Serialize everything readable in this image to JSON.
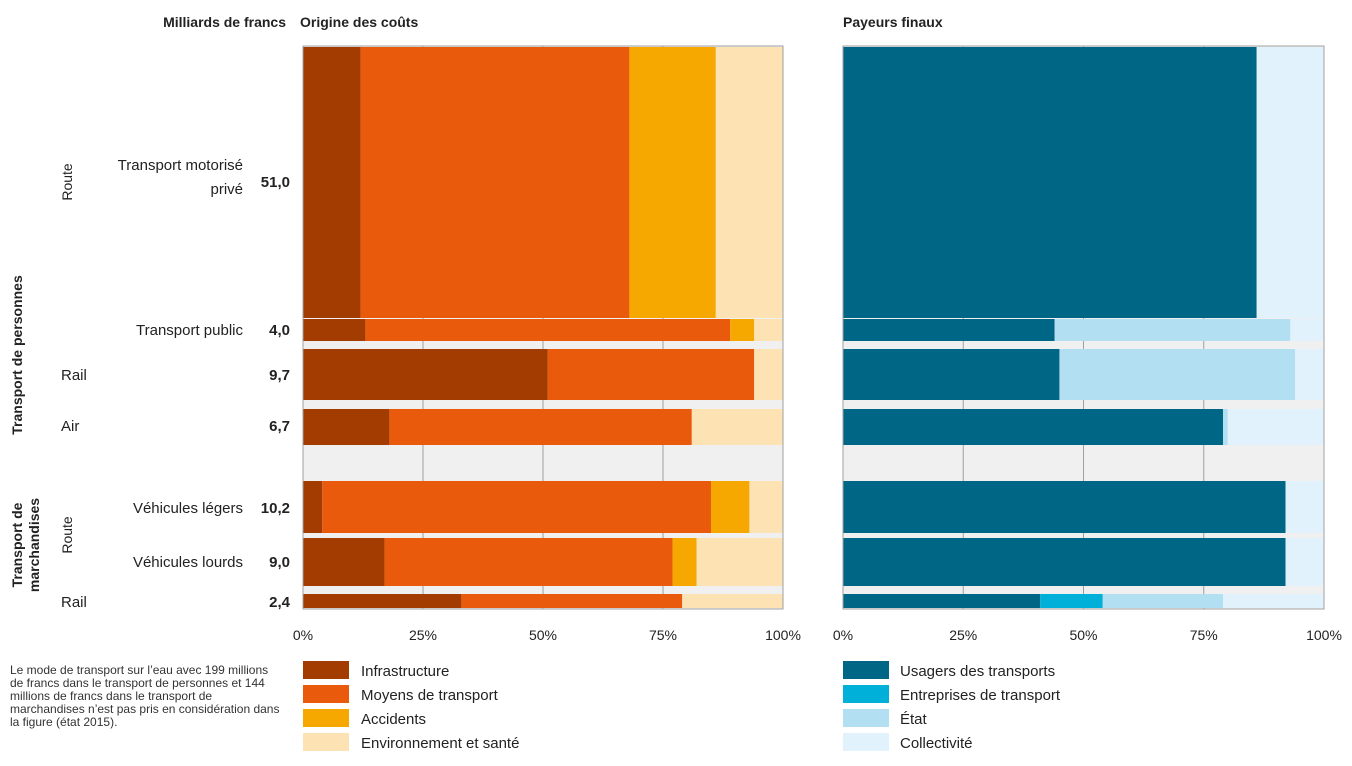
{
  "header": {
    "unit_label": "Milliards de francs",
    "left_title": "Origine des coûts",
    "right_title": "Payeurs finaux"
  },
  "groups": {
    "personnes": "Transport de personnes",
    "marchandises": "Transport de marchandises",
    "route": "Route"
  },
  "note": "Le mode de transport sur l’eau avec 199 millions de francs dans le transport de personnes et 144 millions de francs dans le transport de marchandises n’est pas pris en considération dans la figure (état 2015).",
  "chart_data": [
    {
      "type": "bar",
      "orientation": "horizontal",
      "stacked": "percent",
      "title": "Origine des coûts",
      "categories": [
        "Transport motorisé privé",
        "Transport public",
        "Rail",
        "Air",
        "Véhicules légers",
        "Véhicules lourds",
        "Rail"
      ],
      "totals": [
        "51,0",
        "4,0",
        "9,7",
        "6,7",
        "10,2",
        "9,0",
        "2,4"
      ],
      "xlim": [
        0,
        100
      ],
      "xticks": [
        "0%",
        "25%",
        "50%",
        "75%",
        "100%"
      ],
      "grid": true,
      "series": [
        {
          "name": "Infrastructure",
          "color": "#a33c00",
          "values": [
            12,
            13,
            51,
            18,
            4,
            17,
            33
          ]
        },
        {
          "name": "Moyens de transport",
          "color": "#e95a0c",
          "values": [
            56,
            76,
            43,
            63,
            81,
            60,
            46
          ]
        },
        {
          "name": "Accidents",
          "color": "#f6a800",
          "values": [
            18,
            5,
            0,
            0,
            8,
            5,
            0
          ]
        },
        {
          "name": "Environnement et santé",
          "color": "#fde2b4",
          "values": [
            14,
            6,
            6,
            19,
            7,
            18,
            21
          ]
        }
      ]
    },
    {
      "type": "bar",
      "orientation": "horizontal",
      "stacked": "percent",
      "title": "Payeurs finaux",
      "categories": [
        "Transport motorisé privé",
        "Transport public",
        "Rail",
        "Air",
        "Véhicules légers",
        "Véhicules lourds",
        "Rail"
      ],
      "xlim": [
        0,
        100
      ],
      "xticks": [
        "0%",
        "25%",
        "50%",
        "75%",
        "100%"
      ],
      "grid": true,
      "series": [
        {
          "name": "Usagers des transports",
          "color": "#006686",
          "values": [
            86,
            44,
            45,
            79,
            92,
            92,
            41
          ]
        },
        {
          "name": "Entreprises de transport",
          "color": "#00b0d8",
          "values": [
            0,
            0,
            0,
            0,
            0,
            0,
            13
          ]
        },
        {
          "name": "État",
          "color": "#b3dff2",
          "values": [
            0,
            49,
            49,
            1,
            0,
            0,
            25
          ]
        },
        {
          "name": "Collectivité",
          "color": "#e1f2fc",
          "values": [
            14,
            7,
            6,
            20,
            8,
            8,
            21
          ]
        }
      ]
    }
  ]
}
